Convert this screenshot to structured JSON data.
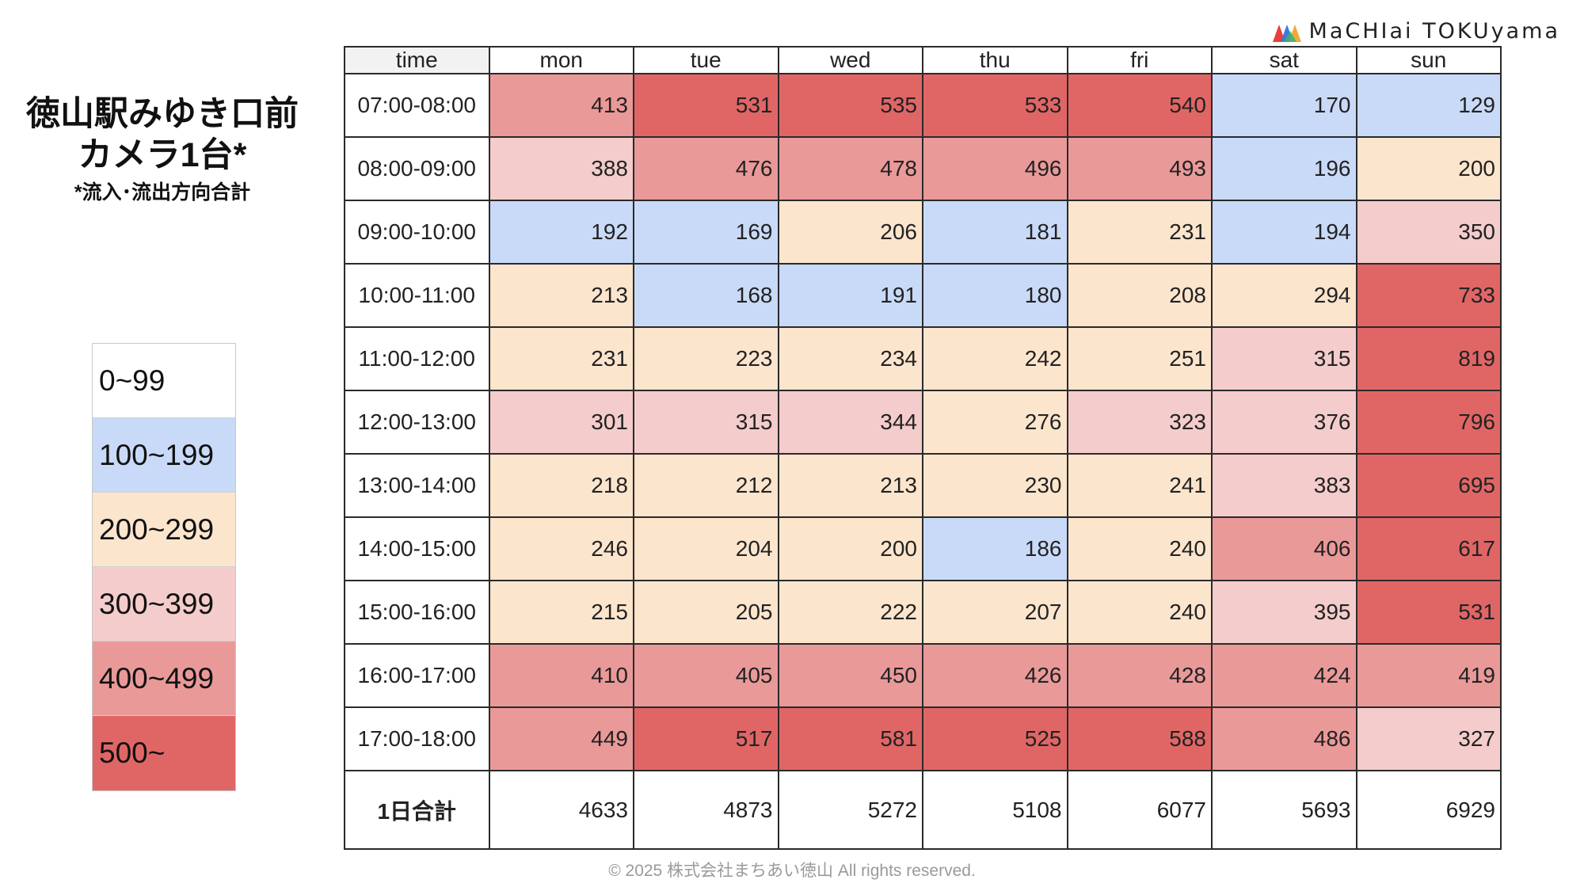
{
  "title_lines": [
    "徳山駅みゆき口前",
    "カメラ1台*"
  ],
  "note": "*流入･流出方向合計",
  "logo_text": "MaCHIai TOKUyama",
  "footer": "© 2025 株式会社まちあい徳山  All rights reserved.",
  "legend": [
    {
      "label": "0~99",
      "color": "#ffffff"
    },
    {
      "label": "100~199",
      "color": "#c9daf8"
    },
    {
      "label": "200~299",
      "color": "#fce5cd"
    },
    {
      "label": "300~399",
      "color": "#f4cccc"
    },
    {
      "label": "400~499",
      "color": "#ea9999"
    },
    {
      "label": "500~",
      "color": "#e06666"
    }
  ],
  "chart_data": {
    "type": "heatmap",
    "corner_label": "time",
    "columns": [
      "mon",
      "tue",
      "wed",
      "thu",
      "fri",
      "sat",
      "sun"
    ],
    "rows": [
      "07:00-08:00",
      "08:00-09:00",
      "09:00-10:00",
      "10:00-11:00",
      "11:00-12:00",
      "12:00-13:00",
      "13:00-14:00",
      "14:00-15:00",
      "15:00-16:00",
      "16:00-17:00",
      "17:00-18:00"
    ],
    "values": [
      [
        413,
        531,
        535,
        533,
        540,
        170,
        129
      ],
      [
        388,
        476,
        478,
        496,
        493,
        196,
        200
      ],
      [
        192,
        169,
        206,
        181,
        231,
        194,
        350
      ],
      [
        213,
        168,
        191,
        180,
        208,
        294,
        733
      ],
      [
        231,
        223,
        234,
        242,
        251,
        315,
        819
      ],
      [
        301,
        315,
        344,
        276,
        323,
        376,
        796
      ],
      [
        218,
        212,
        213,
        230,
        241,
        383,
        695
      ],
      [
        246,
        204,
        200,
        186,
        240,
        406,
        617
      ],
      [
        215,
        205,
        222,
        207,
        240,
        395,
        531
      ],
      [
        410,
        405,
        450,
        426,
        428,
        424,
        419
      ],
      [
        449,
        517,
        581,
        525,
        588,
        486,
        327
      ]
    ],
    "total_label": "1日合計",
    "totals": [
      4633,
      4873,
      5272,
      5108,
      6077,
      5693,
      6929
    ]
  }
}
